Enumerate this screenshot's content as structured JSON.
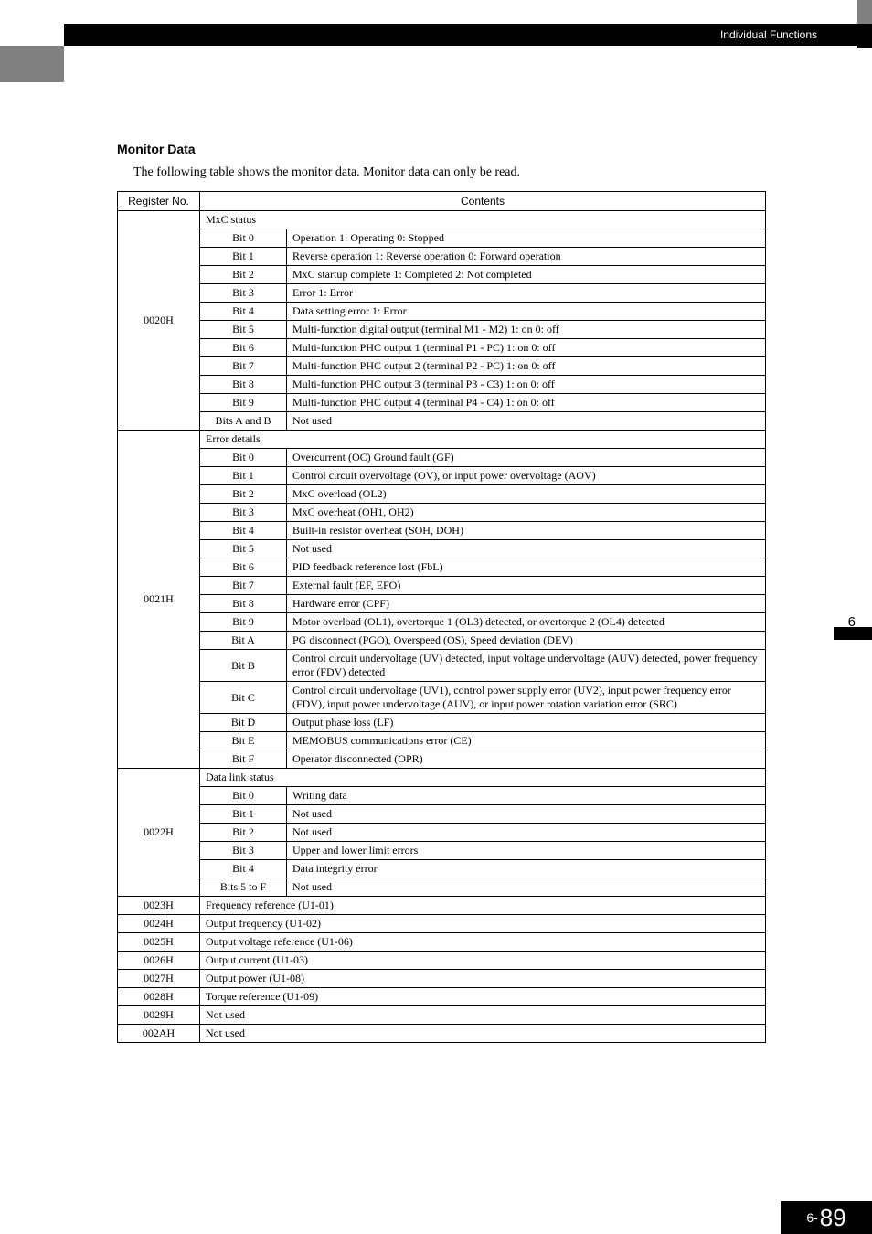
{
  "header": {
    "breadcrumb": "Individual Functions"
  },
  "section": {
    "title": "Monitor Data",
    "intro": "The following table shows the monitor data. Monitor data can only be read."
  },
  "table": {
    "headers": {
      "register": "Register No.",
      "contents": "Contents"
    },
    "groups": [
      {
        "register": "0020H",
        "groupLabel": "MxC status",
        "rows": [
          {
            "bit": "Bit 0",
            "desc": "Operation 1: Operating 0: Stopped"
          },
          {
            "bit": "Bit 1",
            "desc": "Reverse operation 1: Reverse operation 0: Forward operation"
          },
          {
            "bit": "Bit 2",
            "desc": "MxC startup complete 1: Completed 2: Not completed"
          },
          {
            "bit": "Bit 3",
            "desc": "Error 1: Error"
          },
          {
            "bit": "Bit 4",
            "desc": "Data setting error 1: Error"
          },
          {
            "bit": "Bit 5",
            "desc": "Multi-function digital output (terminal M1 - M2) 1: on 0: off"
          },
          {
            "bit": "Bit 6",
            "desc": "Multi-function PHC output 1 (terminal P1 - PC) 1: on 0: off"
          },
          {
            "bit": "Bit 7",
            "desc": "Multi-function PHC output 2 (terminal P2 - PC) 1: on 0: off"
          },
          {
            "bit": "Bit 8",
            "desc": "Multi-function PHC output 3 (terminal P3 - C3) 1: on 0: off"
          },
          {
            "bit": "Bit 9",
            "desc": "Multi-function PHC output 4 (terminal P4 - C4) 1: on 0: off"
          },
          {
            "bit": "Bits A and B",
            "desc": "Not used"
          }
        ]
      },
      {
        "register": "0021H",
        "groupLabel": "Error details",
        "rows": [
          {
            "bit": "Bit 0",
            "desc": "Overcurrent (OC) Ground fault (GF)"
          },
          {
            "bit": "Bit 1",
            "desc": "Control circuit overvoltage (OV), or input power overvoltage (AOV)"
          },
          {
            "bit": "Bit 2",
            "desc": "MxC overload (OL2)"
          },
          {
            "bit": "Bit 3",
            "desc": "MxC overheat (OH1, OH2)"
          },
          {
            "bit": "Bit 4",
            "desc": "Built-in resistor overheat (SOH, DOH)"
          },
          {
            "bit": "Bit 5",
            "desc": "Not used"
          },
          {
            "bit": "Bit 6",
            "desc": "PID feedback reference lost (FbL)"
          },
          {
            "bit": "Bit 7",
            "desc": "External fault (EF, EFO)"
          },
          {
            "bit": "Bit 8",
            "desc": "Hardware error (CPF)"
          },
          {
            "bit": "Bit 9",
            "desc": "Motor overload (OL1), overtorque 1 (OL3) detected, or overtorque 2 (OL4) detected"
          },
          {
            "bit": "Bit A",
            "desc": "PG disconnect (PGO), Overspeed (OS), Speed deviation (DEV)"
          },
          {
            "bit": "Bit B",
            "desc": "Control circuit undervoltage (UV) detected, input voltage undervoltage (AUV) detected, power frequency error (FDV) detected"
          },
          {
            "bit": "Bit C",
            "desc": "Control circuit undervoltage (UV1), control power supply error (UV2), input power frequency error (FDV), input power undervoltage (AUV), or input power rotation variation error (SRC)"
          },
          {
            "bit": "Bit D",
            "desc": "Output phase loss (LF)"
          },
          {
            "bit": "Bit E",
            "desc": "MEMOBUS communications error (CE)"
          },
          {
            "bit": "Bit F",
            "desc": "Operator disconnected (OPR)"
          }
        ]
      },
      {
        "register": "0022H",
        "groupLabel": "Data link status",
        "rows": [
          {
            "bit": "Bit 0",
            "desc": "Writing data"
          },
          {
            "bit": "Bit 1",
            "desc": "Not used"
          },
          {
            "bit": "Bit 2",
            "desc": "Not used"
          },
          {
            "bit": "Bit 3",
            "desc": "Upper and lower limit errors"
          },
          {
            "bit": "Bit 4",
            "desc": "Data integrity error"
          },
          {
            "bit": "Bits 5 to F",
            "desc": "Not used"
          }
        ]
      }
    ],
    "simpleRows": [
      {
        "register": "0023H",
        "desc": "Frequency reference (U1-01)"
      },
      {
        "register": "0024H",
        "desc": "Output frequency (U1-02)"
      },
      {
        "register": "0025H",
        "desc": "Output voltage reference (U1-06)"
      },
      {
        "register": "0026H",
        "desc": "Output current (U1-03)"
      },
      {
        "register": "0027H",
        "desc": "Output power (U1-08)"
      },
      {
        "register": "0028H",
        "desc": "Torque reference (U1-09)"
      },
      {
        "register": "0029H",
        "desc": "Not used"
      },
      {
        "register": "002AH",
        "desc": "Not used"
      }
    ]
  },
  "sideTab": {
    "number": "6"
  },
  "footer": {
    "prefix": "6-",
    "page": "89"
  },
  "style": {
    "colors": {
      "headerBand": "#000000",
      "leftTab": "#808080",
      "rightAccent": "#808080",
      "text": "#000000",
      "footerBg": "#000000",
      "footerText": "#ffffff",
      "border": "#000000",
      "background": "#ffffff"
    },
    "fonts": {
      "body": "Times New Roman",
      "headings": "Arial",
      "sectionTitleSize": 14,
      "introSize": 14,
      "tableSize": 12
    }
  }
}
